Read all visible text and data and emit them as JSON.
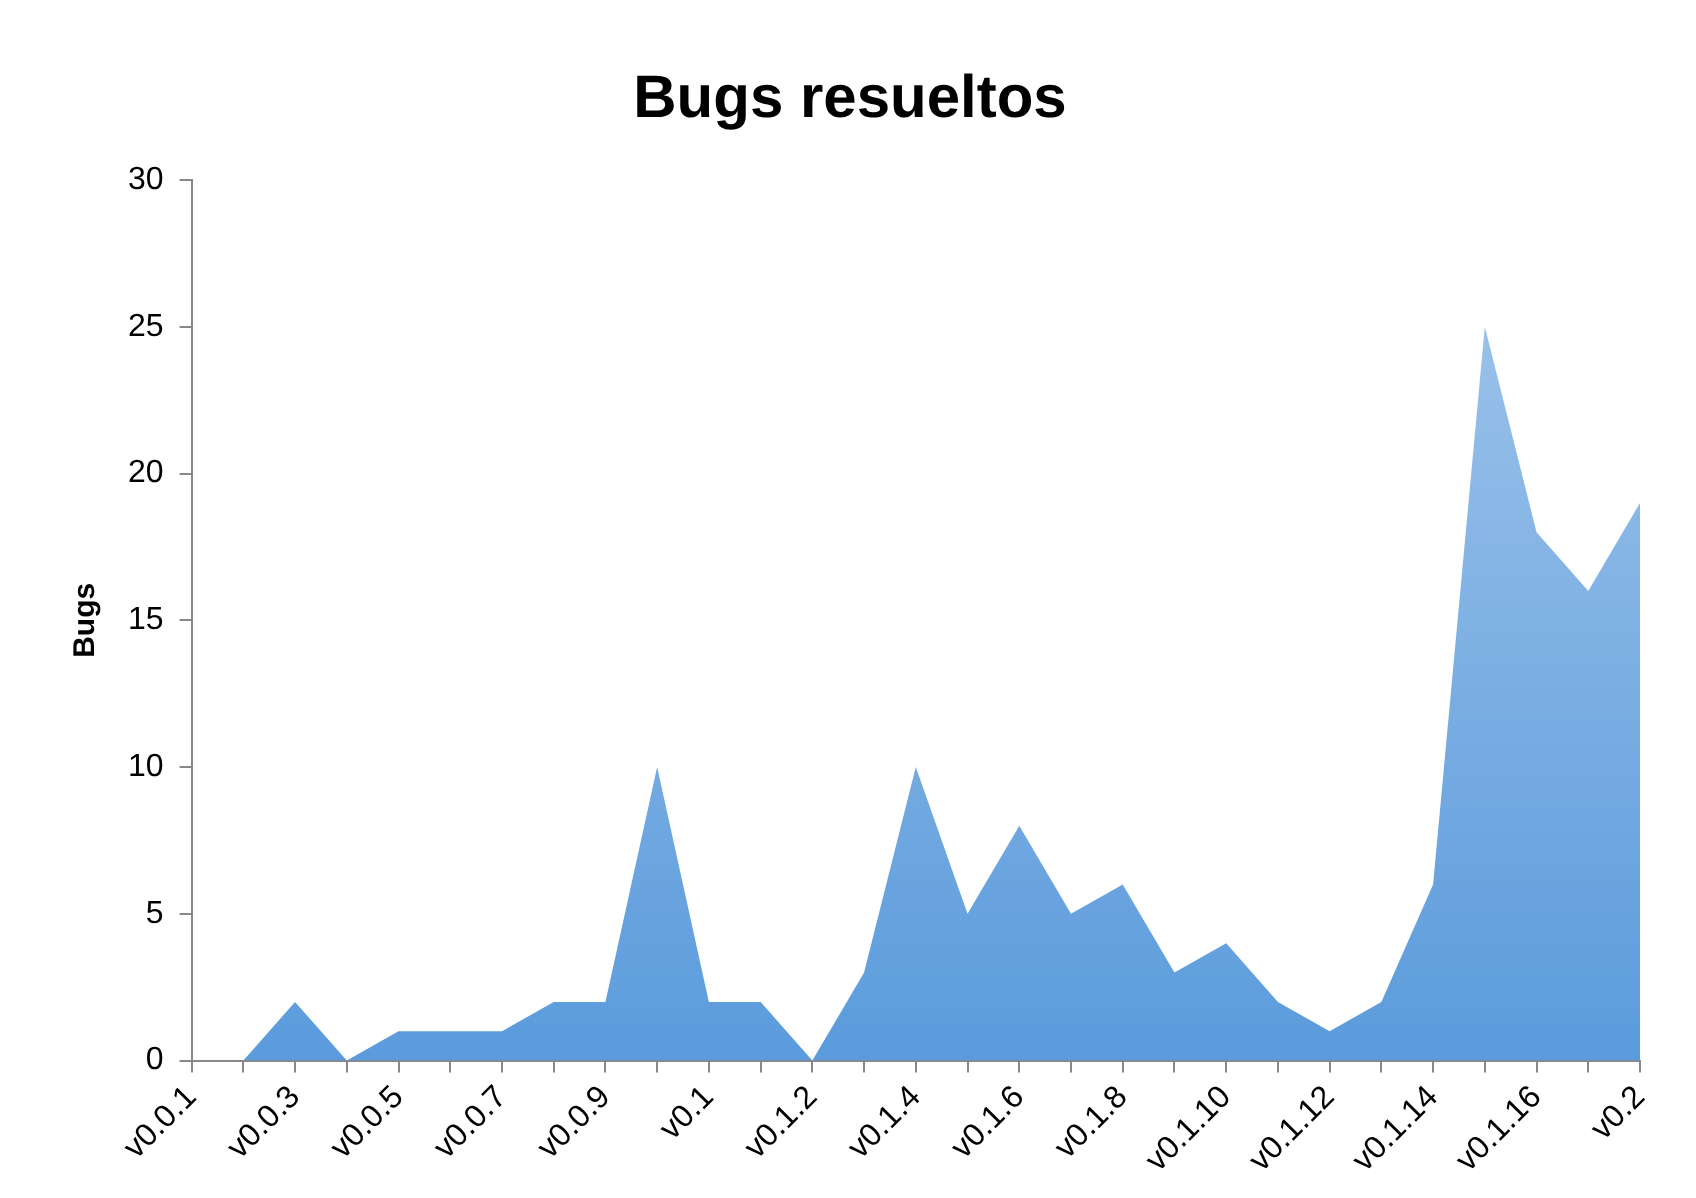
{
  "chart_data": {
    "type": "area",
    "title": "Bugs resueltos",
    "ylabel": "Bugs",
    "categories": [
      "v0.0.1",
      null,
      "v0.0.3",
      null,
      "v0.0.5",
      null,
      "v0.0.7",
      null,
      "v0.0.9",
      null,
      "v0.1",
      null,
      "v0.1.2",
      null,
      "v0.1.4",
      null,
      "v0.1.6",
      null,
      "v0.1.8",
      null,
      "v0.1.10",
      null,
      "v0.1.12",
      null,
      "v0.1.14",
      null,
      "v0.1.16",
      null,
      "v0.2"
    ],
    "series": [
      {
        "color": "#5b9bdc",
        "values": [
          0,
          0,
          2,
          0,
          1,
          1,
          1,
          2,
          2,
          10,
          2,
          2,
          0,
          3,
          10,
          5,
          8,
          5,
          6,
          3,
          4,
          2,
          1,
          2,
          6,
          25,
          18,
          16,
          19
        ]
      }
    ],
    "ylim": [
      0,
      30
    ],
    "yticks": [
      0,
      5,
      10,
      15,
      20,
      25,
      30
    ],
    "grid": false,
    "legend": false
  }
}
